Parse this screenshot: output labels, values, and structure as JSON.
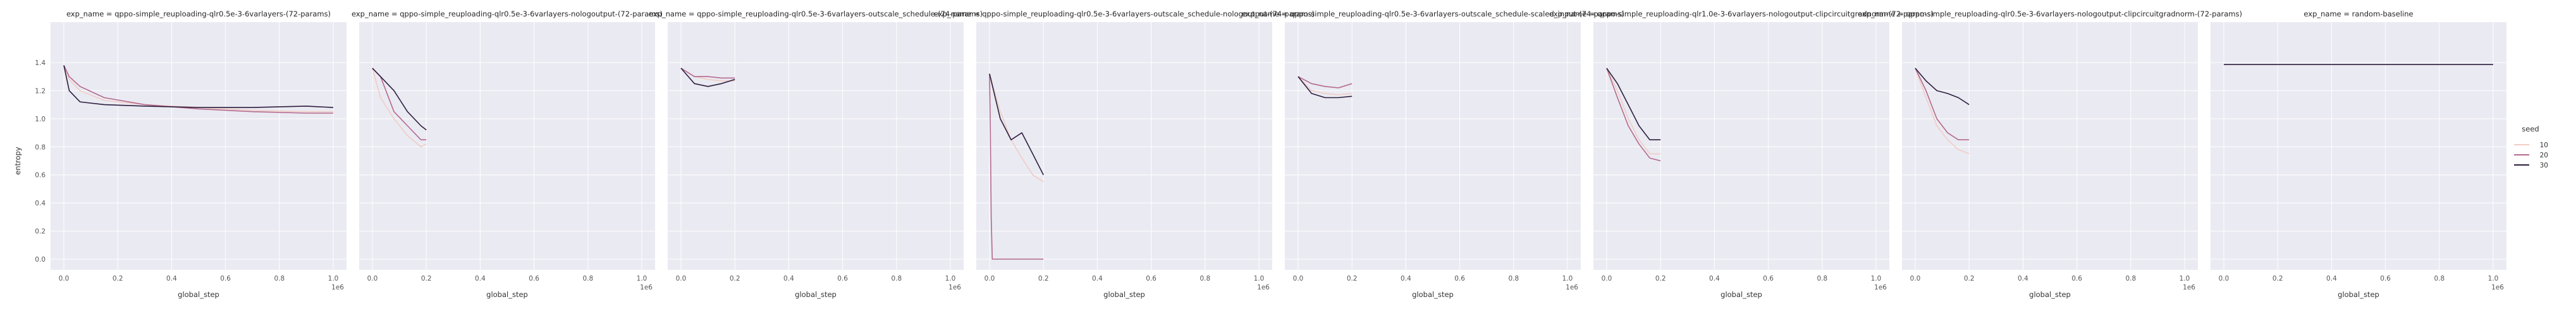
{
  "figure": {
    "ylabel": "entropy",
    "xlabel": "global_step",
    "x_offset_text": "1e6",
    "x_tick_labels": [
      "0.0",
      "0.2",
      "0.4",
      "0.6",
      "0.8",
      "1.0"
    ],
    "y_tick_labels": [
      "0.0",
      "0.2",
      "0.4",
      "0.6",
      "0.8",
      "1.0",
      "1.2",
      "1.4"
    ],
    "legend": {
      "title": "seed",
      "entries": [
        {
          "label": "10",
          "color": "#f0cdc4"
        },
        {
          "label": "20",
          "color": "#b5698e"
        },
        {
          "label": "30",
          "color": "#2d1e3e"
        }
      ]
    },
    "colors": {
      "background": "#eaeaf2",
      "grid": "#ffffff"
    }
  },
  "chart_data": [
    {
      "type": "line",
      "title": "exp_name = qppo-simple_reuploading-qlr0.5e-3-6varlayers-(72-params)",
      "xlabel": "global_step",
      "ylabel": "entropy",
      "xlim": [
        0,
        1000000
      ],
      "ylim": [
        0,
        1.4
      ],
      "grid": true,
      "series": [
        {
          "name": "10",
          "x": [
            0,
            20000,
            60000,
            150000,
            300000,
            500000,
            700000,
            900000,
            1000000
          ],
          "y": [
            1.38,
            1.28,
            1.2,
            1.13,
            1.1,
            1.08,
            1.06,
            1.05,
            1.05
          ]
        },
        {
          "name": "20",
          "x": [
            0,
            20000,
            60000,
            150000,
            300000,
            500000,
            700000,
            900000,
            1000000
          ],
          "y": [
            1.38,
            1.3,
            1.23,
            1.15,
            1.1,
            1.07,
            1.05,
            1.04,
            1.04
          ]
        },
        {
          "name": "30",
          "x": [
            0,
            20000,
            60000,
            150000,
            300000,
            500000,
            700000,
            900000,
            1000000
          ],
          "y": [
            1.38,
            1.2,
            1.12,
            1.1,
            1.09,
            1.08,
            1.08,
            1.09,
            1.08
          ]
        }
      ]
    },
    {
      "type": "line",
      "title": "exp_name = qppo-simple_reuploading-qlr0.5e-3-6varlayers-nologoutput-(72-params)",
      "xlabel": "global_step",
      "ylabel": "entropy",
      "xlim": [
        0,
        1000000
      ],
      "ylim": [
        0,
        1.4
      ],
      "grid": true,
      "series": [
        {
          "name": "10",
          "x": [
            0,
            30000,
            80000,
            130000,
            180000,
            200000
          ],
          "y": [
            1.36,
            1.15,
            1.0,
            0.88,
            0.8,
            0.82
          ]
        },
        {
          "name": "20",
          "x": [
            0,
            30000,
            80000,
            130000,
            180000,
            200000
          ],
          "y": [
            1.36,
            1.3,
            1.05,
            0.95,
            0.85,
            0.85
          ]
        },
        {
          "name": "30",
          "x": [
            0,
            30000,
            80000,
            130000,
            180000,
            200000
          ],
          "y": [
            1.36,
            1.3,
            1.2,
            1.05,
            0.95,
            0.92
          ]
        }
      ]
    },
    {
      "type": "line",
      "title": "exp_name = qppo-simple_reuploading-qlr0.5e-3-6varlayers-outscale_schedule-(74-params)",
      "xlabel": "global_step",
      "ylabel": "entropy",
      "xlim": [
        0,
        1000000
      ],
      "ylim": [
        0,
        1.4
      ],
      "grid": true,
      "series": [
        {
          "name": "10",
          "x": [
            0,
            50000,
            100000,
            150000,
            200000
          ],
          "y": [
            1.36,
            1.3,
            1.28,
            1.27,
            1.27
          ]
        },
        {
          "name": "20",
          "x": [
            0,
            50000,
            100000,
            150000,
            200000
          ],
          "y": [
            1.36,
            1.3,
            1.3,
            1.29,
            1.29
          ]
        },
        {
          "name": "30",
          "x": [
            0,
            50000,
            100000,
            150000,
            200000
          ],
          "y": [
            1.36,
            1.25,
            1.23,
            1.25,
            1.28
          ]
        }
      ]
    },
    {
      "type": "line",
      "title": "exp_name = qppo-simple_reuploading-qlr0.5e-3-6varlayers-outscale_schedule-nologoutput-(74-params)",
      "xlabel": "global_step",
      "ylabel": "entropy",
      "xlim": [
        0,
        1000000
      ],
      "ylim": [
        0,
        1.4
      ],
      "grid": true,
      "series": [
        {
          "name": "10",
          "x": [
            0,
            40000,
            80000,
            120000,
            160000,
            200000
          ],
          "y": [
            1.32,
            1.05,
            0.85,
            0.72,
            0.6,
            0.55
          ]
        },
        {
          "name": "20",
          "x": [
            0,
            3000,
            6000,
            10000,
            200000
          ],
          "y": [
            1.32,
            0.9,
            0.3,
            0.0,
            0.0
          ]
        },
        {
          "name": "30",
          "x": [
            0,
            40000,
            80000,
            120000,
            160000,
            200000
          ],
          "y": [
            1.32,
            1.0,
            0.85,
            0.9,
            0.75,
            0.6
          ]
        }
      ]
    },
    {
      "type": "line",
      "title": "exp_name = qppo-simple_reuploading-qlr0.5e-3-6varlayers-outscale_schedule-scaled_input-(74-params)",
      "xlabel": "global_step",
      "ylabel": "entropy",
      "xlim": [
        0,
        1000000
      ],
      "ylim": [
        0,
        1.4
      ],
      "grid": true,
      "series": [
        {
          "name": "10",
          "x": [
            0,
            50000,
            100000,
            150000,
            200000
          ],
          "y": [
            1.3,
            1.2,
            1.18,
            1.17,
            1.18
          ]
        },
        {
          "name": "20",
          "x": [
            0,
            50000,
            100000,
            150000,
            200000
          ],
          "y": [
            1.3,
            1.25,
            1.23,
            1.22,
            1.25
          ]
        },
        {
          "name": "30",
          "x": [
            0,
            50000,
            100000,
            150000,
            200000
          ],
          "y": [
            1.3,
            1.18,
            1.15,
            1.15,
            1.16
          ]
        }
      ]
    },
    {
      "type": "line",
      "title": "exp_name = qppo-simple_reuploading-qlr1.0e-3-6varlayers-nologoutput-clipcircuitgradnorm-(72-params)",
      "xlabel": "global_step",
      "ylabel": "entropy",
      "xlim": [
        0,
        1000000
      ],
      "ylim": [
        0,
        1.4
      ],
      "grid": true,
      "series": [
        {
          "name": "10",
          "x": [
            0,
            40000,
            80000,
            120000,
            160000,
            200000
          ],
          "y": [
            1.36,
            1.2,
            1.0,
            0.85,
            0.75,
            0.75
          ]
        },
        {
          "name": "20",
          "x": [
            0,
            40000,
            80000,
            120000,
            160000,
            200000
          ],
          "y": [
            1.36,
            1.15,
            0.95,
            0.82,
            0.72,
            0.7
          ]
        },
        {
          "name": "30",
          "x": [
            0,
            40000,
            80000,
            120000,
            160000,
            200000
          ],
          "y": [
            1.36,
            1.25,
            1.1,
            0.95,
            0.85,
            0.85
          ]
        }
      ]
    },
    {
      "type": "line",
      "title": "exp_name = qppo-simple_reuploading-qlr0.5e-3-6varlayers-nologoutput-clipcircuitgradnorm-(72-params)",
      "xlabel": "global_step",
      "ylabel": "entropy",
      "xlim": [
        0,
        1000000
      ],
      "ylim": [
        0,
        1.4
      ],
      "grid": true,
      "series": [
        {
          "name": "10",
          "x": [
            0,
            40000,
            80000,
            120000,
            160000,
            200000
          ],
          "y": [
            1.36,
            1.15,
            0.95,
            0.85,
            0.78,
            0.75
          ]
        },
        {
          "name": "20",
          "x": [
            0,
            40000,
            80000,
            120000,
            160000,
            200000
          ],
          "y": [
            1.36,
            1.2,
            1.0,
            0.9,
            0.85,
            0.85
          ]
        },
        {
          "name": "30",
          "x": [
            0,
            40000,
            80000,
            120000,
            160000,
            200000
          ],
          "y": [
            1.36,
            1.27,
            1.2,
            1.18,
            1.15,
            1.1
          ]
        }
      ]
    },
    {
      "type": "line",
      "title": "exp_name = random-baseline",
      "xlabel": "global_step",
      "ylabel": "entropy",
      "xlim": [
        0,
        1000000
      ],
      "ylim": [
        0,
        1.4
      ],
      "grid": true,
      "series": [
        {
          "name": "30",
          "x": [
            0,
            1000000
          ],
          "y": [
            1.386,
            1.386
          ]
        }
      ]
    }
  ]
}
